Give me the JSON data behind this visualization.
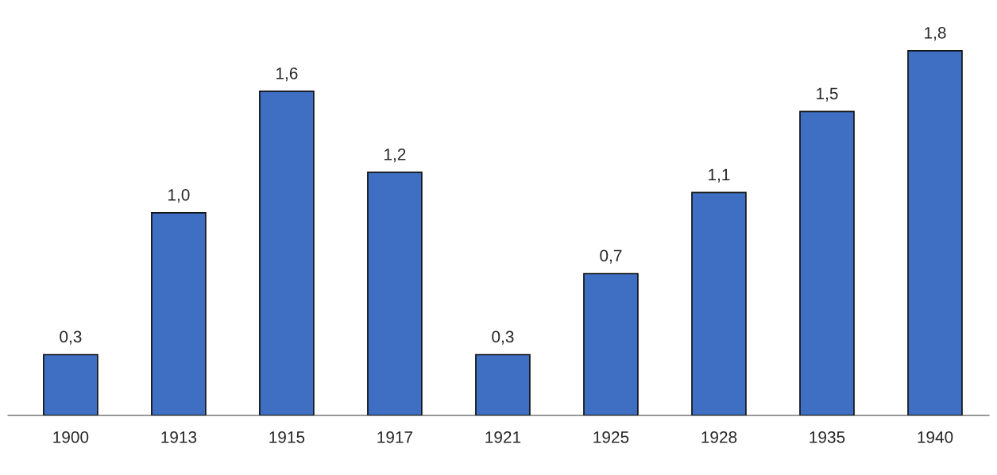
{
  "chart_data": {
    "type": "bar",
    "categories": [
      "1900",
      "1913",
      "1915",
      "1917",
      "1921",
      "1925",
      "1928",
      "1935",
      "1940"
    ],
    "values": [
      0.3,
      1.0,
      1.6,
      1.2,
      0.3,
      0.7,
      1.1,
      1.5,
      1.8
    ],
    "value_labels": [
      "0,3",
      "1,0",
      "1,6",
      "1,2",
      "0,3",
      "0,7",
      "1,1",
      "1,5",
      "1,8"
    ],
    "color": "#3f6fc2",
    "tick_labels": "x",
    "grid": false,
    "legend": false
  }
}
